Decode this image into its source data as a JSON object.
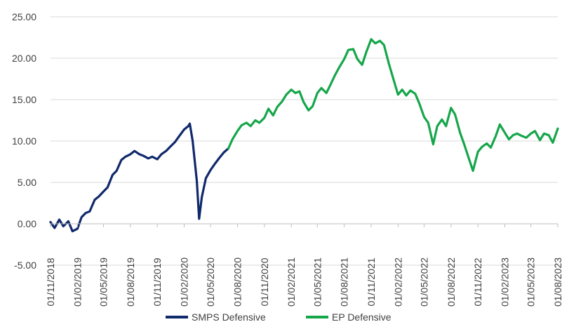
{
  "chart_data": {
    "type": "line",
    "title": "",
    "xlabel": "",
    "ylabel": "",
    "ylim": [
      -5,
      25
    ],
    "yticks": [
      "25.00",
      "20.00",
      "15.00",
      "10.00",
      "5.00",
      "0.00",
      "-5.00"
    ],
    "ytick_values": [
      25,
      20,
      15,
      10,
      5,
      0,
      -5
    ],
    "xticks": [
      "01/11/2018",
      "01/02/2019",
      "01/05/2019",
      "01/08/2019",
      "01/11/2019",
      "01/02/2020",
      "01/05/2020",
      "01/08/2020",
      "01/11/2020",
      "01/02/2021",
      "01/05/2021",
      "01/08/2021",
      "01/11/2021",
      "01/02/2022",
      "01/05/2022",
      "01/08/2022",
      "01/11/2022",
      "01/02/2023",
      "01/05/2023",
      "01/08/2023"
    ],
    "grid": "horizontal",
    "legend_position": "bottom",
    "series": [
      {
        "name": "SMPS Defensive",
        "color": "#10296b",
        "x": [
          "01/11/2018",
          "15/11/2018",
          "01/12/2018",
          "15/12/2018",
          "01/01/2019",
          "15/01/2019",
          "01/02/2019",
          "15/02/2019",
          "01/03/2019",
          "15/03/2019",
          "01/04/2019",
          "15/04/2019",
          "01/05/2019",
          "15/05/2019",
          "01/06/2019",
          "15/06/2019",
          "01/07/2019",
          "15/07/2019",
          "01/08/2019",
          "15/08/2019",
          "01/09/2019",
          "15/09/2019",
          "01/10/2019",
          "15/10/2019",
          "01/11/2019",
          "15/11/2019",
          "01/12/2019",
          "15/12/2019",
          "01/01/2020",
          "15/01/2020",
          "01/02/2020",
          "15/02/2020",
          "20/02/2020",
          "01/03/2020",
          "15/03/2020",
          "23/03/2020",
          "01/04/2020",
          "15/04/2020",
          "01/05/2020",
          "15/05/2020",
          "01/06/2020",
          "15/06/2020",
          "01/07/2020"
        ],
        "y": [
          0.2,
          -0.5,
          0.5,
          -0.3,
          0.3,
          -0.9,
          -0.6,
          0.8,
          1.3,
          1.5,
          2.9,
          3.3,
          3.9,
          4.4,
          5.9,
          6.4,
          7.7,
          8.1,
          8.4,
          8.8,
          8.4,
          8.2,
          7.9,
          8.1,
          7.8,
          8.4,
          8.8,
          9.3,
          9.9,
          10.6,
          11.4,
          11.8,
          12.1,
          10.0,
          5.2,
          0.6,
          3.2,
          5.5,
          6.5,
          7.2,
          8.0,
          8.6,
          9.1
        ]
      },
      {
        "name": "EP Defensive",
        "color": "#16a64a",
        "x": [
          "01/07/2020",
          "15/07/2020",
          "01/08/2020",
          "15/08/2020",
          "01/09/2020",
          "15/09/2020",
          "01/10/2020",
          "15/10/2020",
          "01/11/2020",
          "15/11/2020",
          "01/12/2020",
          "15/12/2020",
          "01/01/2021",
          "15/01/2021",
          "01/02/2021",
          "15/02/2021",
          "01/03/2021",
          "15/03/2021",
          "01/04/2021",
          "15/04/2021",
          "01/05/2021",
          "15/05/2021",
          "01/06/2021",
          "15/06/2021",
          "01/07/2021",
          "15/07/2021",
          "01/08/2021",
          "15/08/2021",
          "01/09/2021",
          "15/09/2021",
          "01/10/2021",
          "15/10/2021",
          "01/11/2021",
          "15/11/2021",
          "01/12/2021",
          "15/12/2021",
          "01/01/2022",
          "15/01/2022",
          "01/02/2022",
          "15/02/2022",
          "01/03/2022",
          "15/03/2022",
          "01/04/2022",
          "15/04/2022",
          "01/05/2022",
          "15/05/2022",
          "01/06/2022",
          "15/06/2022",
          "01/07/2022",
          "15/07/2022",
          "01/08/2022",
          "15/08/2022",
          "01/09/2022",
          "15/09/2022",
          "01/10/2022",
          "15/10/2022",
          "01/11/2022",
          "15/11/2022",
          "01/12/2022",
          "15/12/2022",
          "01/01/2023",
          "15/01/2023",
          "01/02/2023",
          "15/02/2023",
          "01/03/2023",
          "15/03/2023",
          "01/04/2023",
          "15/04/2023",
          "01/05/2023",
          "15/05/2023",
          "01/06/2023",
          "15/06/2023",
          "01/07/2023",
          "15/07/2023",
          "01/08/2023"
        ],
        "y": [
          9.1,
          10.2,
          11.2,
          11.9,
          12.2,
          11.8,
          12.5,
          12.2,
          12.8,
          13.9,
          13.1,
          14.1,
          14.8,
          15.6,
          16.2,
          15.8,
          16.0,
          14.7,
          13.7,
          14.2,
          15.8,
          16.4,
          15.8,
          16.8,
          18.0,
          18.9,
          19.9,
          21.0,
          21.1,
          19.9,
          19.2,
          20.7,
          22.3,
          21.8,
          22.1,
          21.6,
          19.3,
          17.6,
          15.6,
          16.2,
          15.5,
          16.1,
          15.7,
          14.5,
          12.9,
          12.2,
          9.6,
          11.8,
          12.6,
          11.8,
          14.0,
          13.2,
          11.0,
          9.6,
          7.9,
          6.4,
          8.7,
          9.3,
          9.7,
          9.2,
          10.6,
          12.0,
          11.0,
          10.2,
          10.7,
          10.9,
          10.6,
          10.4,
          10.9,
          11.2,
          10.1,
          10.9,
          10.7,
          9.8,
          11.5
        ]
      }
    ]
  }
}
